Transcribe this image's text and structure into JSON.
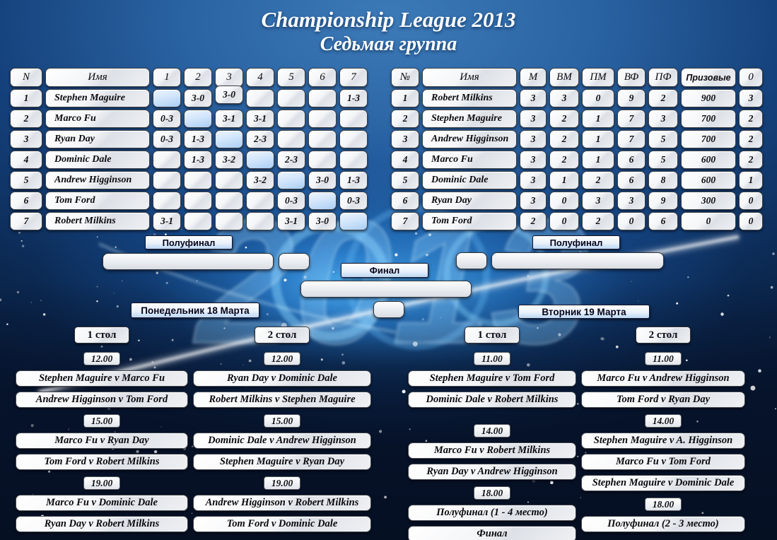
{
  "title": {
    "line1": "Championship League 2013",
    "line2": "Седьмая группа"
  },
  "results_table": {
    "headers": [
      "N",
      "Имя",
      "1",
      "2",
      "3",
      "4",
      "5",
      "6",
      "7"
    ],
    "rows": [
      {
        "n": "1",
        "name": "Stephen Maguire",
        "cells": [
          "",
          "3-0",
          "3-0",
          "",
          "",
          "",
          "1-3"
        ]
      },
      {
        "n": "2",
        "name": "Marco Fu",
        "cells": [
          "0-3",
          "",
          "3-1",
          "3-1",
          "",
          "",
          ""
        ]
      },
      {
        "n": "3",
        "name": "Ryan Day",
        "cells": [
          "0-3",
          "1-3",
          "",
          "2-3",
          "",
          "",
          ""
        ]
      },
      {
        "n": "4",
        "name": "Dominic Dale",
        "cells": [
          "",
          "1-3",
          "3-2",
          "",
          "2-3",
          "",
          ""
        ]
      },
      {
        "n": "5",
        "name": "Andrew Higginson",
        "cells": [
          "",
          "",
          "",
          "3-2",
          "",
          "3-0",
          "1-3"
        ]
      },
      {
        "n": "6",
        "name": "Tom Ford",
        "cells": [
          "",
          "",
          "",
          "",
          "0-3",
          "",
          "0-3"
        ]
      },
      {
        "n": "7",
        "name": "Robert Milkins",
        "cells": [
          "3-1",
          "",
          "",
          "",
          "3-1",
          "3-0",
          ""
        ]
      }
    ]
  },
  "standings_table": {
    "headers": [
      "№",
      "Имя",
      "М",
      "ВМ",
      "ПМ",
      "ВФ",
      "ПФ",
      "Призовые",
      "0"
    ],
    "rows": [
      [
        "1",
        "Robert Milkins",
        "3",
        "3",
        "0",
        "9",
        "2",
        "900",
        "3"
      ],
      [
        "2",
        "Stephen Maguire",
        "3",
        "2",
        "1",
        "7",
        "3",
        "700",
        "2"
      ],
      [
        "3",
        "Andrew Higginson",
        "3",
        "2",
        "1",
        "7",
        "5",
        "700",
        "2"
      ],
      [
        "4",
        "Marco Fu",
        "3",
        "2",
        "1",
        "6",
        "5",
        "600",
        "2"
      ],
      [
        "5",
        "Dominic Dale",
        "3",
        "1",
        "2",
        "6",
        "8",
        "600",
        "1"
      ],
      [
        "6",
        "Ryan Day",
        "3",
        "0",
        "3",
        "3",
        "9",
        "300",
        "0"
      ],
      [
        "7",
        "Tom Ford",
        "2",
        "0",
        "2",
        "0",
        "6",
        "0",
        "0"
      ]
    ]
  },
  "bracket": {
    "semifinal_left": "Полуфинал",
    "final": "Финал",
    "semifinal_right": "Полуфинал"
  },
  "schedule": {
    "monday": {
      "title": "Понедельник 18 Марта",
      "table1": {
        "label": "1 стол",
        "blocks": [
          {
            "time": "12.00",
            "matches": [
              "Stephen Maguire v Marco Fu",
              "Andrew Higginson v Tom Ford"
            ]
          },
          {
            "time": "15.00",
            "matches": [
              "Marco Fu v Ryan Day",
              "Tom Ford v Robert Milkins"
            ]
          },
          {
            "time": "19.00",
            "matches": [
              "Marco Fu v Dominic Dale",
              "Ryan Day v Robert Milkins"
            ]
          }
        ]
      },
      "table2": {
        "label": "2 стол",
        "blocks": [
          {
            "time": "12.00",
            "matches": [
              "Ryan Day v Dominic Dale",
              "Robert Milkins v Stephen Maguire"
            ]
          },
          {
            "time": "15.00",
            "matches": [
              "Dominic Dale v Andrew Higginson",
              "Stephen Maguire v Ryan Day"
            ]
          },
          {
            "time": "19.00",
            "matches": [
              "Andrew Higginson v Robert Milkins",
              "Tom Ford v Dominic Dale"
            ]
          }
        ]
      }
    },
    "tuesday": {
      "title": "Вторник 19 Марта",
      "table1": {
        "label": "1 стол",
        "blocks": [
          {
            "time": "11.00",
            "matches": [
              "Stephen Maguire v Tom Ford",
              "Dominic Dale v Robert Milkins"
            ]
          },
          {
            "time": "14.00",
            "matches": [
              "Marco Fu v Robert Milkins",
              "Ryan Day v Andrew Higginson"
            ]
          },
          {
            "time": "18.00",
            "matches": [
              "Полуфинал (1 - 4 место)",
              "Финал"
            ]
          }
        ]
      },
      "table2": {
        "label": "2 стол",
        "blocks": [
          {
            "time": "11.00",
            "matches": [
              "Marco Fu v Andrew Higginson",
              "Tom Ford v Ryan Day"
            ]
          },
          {
            "time": "14.00",
            "matches": [
              "Stephen Maguire v A. Higginson",
              "Marco Fu v Tom Ford",
              "Stephen Maguire v Dominic Dale"
            ]
          },
          {
            "time": "18.00",
            "matches": [
              "Полуфинал (2 - 3 место)"
            ]
          }
        ]
      }
    }
  }
}
